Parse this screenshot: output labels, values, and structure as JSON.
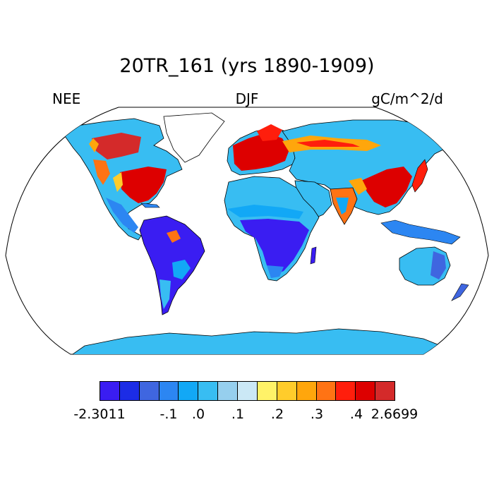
{
  "figure": {
    "title": "20TR_161 (yrs 1890-1909)",
    "left_label": "NEE",
    "center_label": "DJF",
    "right_label": "gC/m^2/d"
  },
  "map": {
    "projection": "Robinson",
    "ocean_color": "#ffffff",
    "coastline_color": "#000000"
  },
  "colorbar": {
    "colors": [
      "#3a1df2",
      "#1c2ce6",
      "#3f66e0",
      "#2c86f2",
      "#12a8f6",
      "#38bdf2",
      "#96cfee",
      "#cbe8f6",
      "#fff268",
      "#ffcc2b",
      "#ffa60c",
      "#ff7314",
      "#ff1e0c",
      "#dd0000",
      "#d42a2a"
    ],
    "labels": [
      "-2.3011",
      "-.1",
      ".0",
      ".1",
      ".2",
      ".3",
      ".4",
      "2.6699"
    ]
  }
}
